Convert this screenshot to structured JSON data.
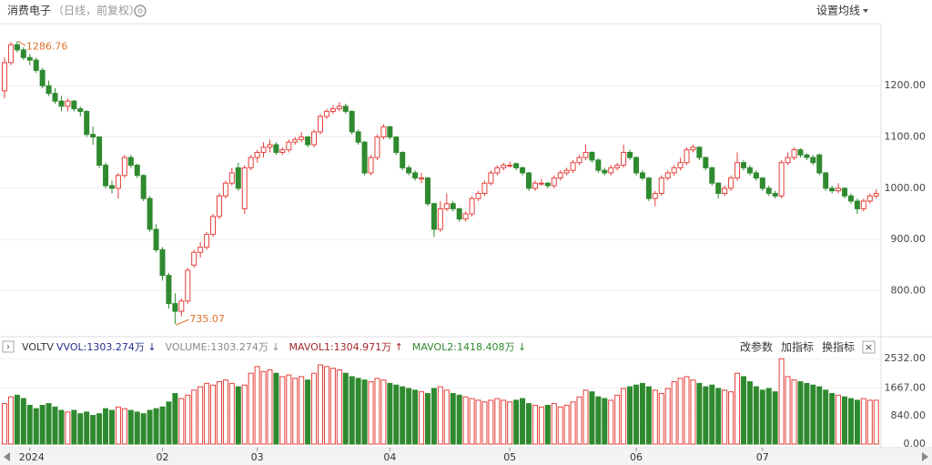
{
  "header": {
    "title": "消费电子",
    "subtitle": "（日线，前复权）",
    "ma_setting": "设置均线"
  },
  "chart_data": [
    {
      "type": "candlestick",
      "open": [
        1190,
        1245,
        1280,
        1270,
        1255,
        1250,
        1230,
        1200,
        1185,
        1170,
        1160,
        1170,
        1155,
        1150,
        1105,
        1100,
        1045,
        1005,
        1000,
        1025,
        1060,
        1045,
        1025,
        980,
        920,
        880,
        830,
        775,
        760,
        780,
        850,
        875,
        885,
        910,
        945,
        985,
        1010,
        1040,
        960,
        1040,
        1060,
        1070,
        1080,
        1085,
        1070,
        1075,
        1090,
        1095,
        1100,
        1085,
        1110,
        1140,
        1150,
        1155,
        1160,
        1150,
        1110,
        1090,
        1030,
        1060,
        1100,
        1120,
        1100,
        1070,
        1040,
        1030,
        1020,
        1020,
        970,
        920,
        960,
        970,
        960,
        940,
        950,
        980,
        990,
        1010,
        1030,
        1040,
        1045,
        1048,
        1040,
        1030,
        1000,
        1010,
        1010,
        1005,
        1020,
        1030,
        1035,
        1050,
        1060,
        1070,
        1055,
        1035,
        1030,
        1040,
        1045,
        1070,
        1060,
        1030,
        1020,
        980,
        990,
        1020,
        1030,
        1040,
        1050,
        1075,
        1080,
        1060,
        1040,
        1010,
        990,
        1000,
        1020,
        1050,
        1040,
        1030,
        1020,
        1000,
        990,
        985,
        1050,
        1060,
        1075,
        1065,
        1060,
        1065,
        1030,
        1000,
        995,
        1000,
        985,
        975,
        960,
        975,
        985
      ],
      "high": [
        1255,
        1285,
        1286.76,
        1275,
        1262,
        1255,
        1235,
        1210,
        1195,
        1180,
        1175,
        1172,
        1160,
        1152,
        1120,
        1102,
        1050,
        1015,
        1030,
        1065,
        1065,
        1048,
        1027,
        985,
        930,
        885,
        835,
        795,
        785,
        845,
        880,
        895,
        915,
        950,
        990,
        1015,
        1040,
        1050,
        1045,
        1065,
        1075,
        1090,
        1095,
        1090,
        1080,
        1095,
        1100,
        1110,
        1102,
        1115,
        1145,
        1155,
        1162,
        1168,
        1165,
        1152,
        1115,
        1092,
        1065,
        1105,
        1125,
        1122,
        1102,
        1072,
        1045,
        1035,
        1030,
        1022,
        972,
        975,
        990,
        975,
        962,
        955,
        985,
        995,
        1015,
        1035,
        1045,
        1050,
        1052,
        1050,
        1042,
        1032,
        1015,
        1018,
        1012,
        1025,
        1035,
        1040,
        1055,
        1065,
        1085,
        1072,
        1058,
        1040,
        1045,
        1050,
        1085,
        1075,
        1062,
        1035,
        1022,
        995,
        1025,
        1035,
        1045,
        1060,
        1080,
        1085,
        1082,
        1062,
        1042,
        1012,
        1005,
        1025,
        1070,
        1055,
        1045,
        1035,
        1022,
        1005,
        995,
        1055,
        1070,
        1080,
        1078,
        1068,
        1065,
        1068,
        1032,
        1005,
        1010,
        1002,
        990,
        980,
        980,
        990,
        998
      ],
      "low": [
        1175,
        1240,
        1265,
        1250,
        1240,
        1225,
        1195,
        1180,
        1165,
        1150,
        1150,
        1150,
        1140,
        1100,
        1085,
        1040,
        1000,
        990,
        980,
        1020,
        1040,
        1020,
        975,
        915,
        875,
        820,
        765,
        735.07,
        750,
        775,
        845,
        865,
        880,
        905,
        940,
        980,
        1005,
        995,
        950,
        1035,
        1050,
        1060,
        1070,
        1065,
        1065,
        1070,
        1085,
        1090,
        1080,
        1080,
        1105,
        1135,
        1145,
        1150,
        1145,
        1105,
        1085,
        1025,
        1025,
        1055,
        1095,
        1095,
        1065,
        1035,
        1025,
        1015,
        1010,
        965,
        905,
        915,
        955,
        955,
        935,
        935,
        945,
        975,
        985,
        1005,
        1025,
        1035,
        1040,
        1035,
        1025,
        995,
        995,
        1005,
        1000,
        1000,
        1015,
        1025,
        1030,
        1045,
        1055,
        1050,
        1030,
        1025,
        1025,
        1035,
        1040,
        1055,
        1025,
        1015,
        975,
        965,
        985,
        1015,
        1025,
        1035,
        1045,
        1070,
        1055,
        1035,
        1005,
        980,
        985,
        995,
        1015,
        1035,
        1025,
        1015,
        995,
        985,
        980,
        980,
        1045,
        1055,
        1060,
        1055,
        1045,
        1025,
        995,
        990,
        990,
        980,
        970,
        950,
        955,
        970,
        980
      ],
      "close": [
        1245,
        1280,
        1270,
        1255,
        1250,
        1230,
        1200,
        1185,
        1170,
        1160,
        1170,
        1155,
        1150,
        1105,
        1100,
        1045,
        1005,
        1000,
        1025,
        1060,
        1045,
        1025,
        980,
        920,
        880,
        830,
        775,
        760,
        780,
        840,
        875,
        885,
        910,
        945,
        985,
        1010,
        1030,
        1000,
        1040,
        1060,
        1070,
        1080,
        1085,
        1070,
        1075,
        1090,
        1095,
        1100,
        1085,
        1110,
        1140,
        1150,
        1155,
        1160,
        1150,
        1110,
        1090,
        1030,
        1060,
        1100,
        1120,
        1100,
        1070,
        1040,
        1030,
        1020,
        1020,
        970,
        920,
        960,
        970,
        960,
        940,
        950,
        980,
        990,
        1010,
        1030,
        1040,
        1045,
        1045,
        1040,
        1030,
        1000,
        1010,
        1010,
        1005,
        1020,
        1030,
        1035,
        1050,
        1060,
        1070,
        1055,
        1035,
        1030,
        1040,
        1045,
        1070,
        1060,
        1030,
        1020,
        980,
        990,
        1020,
        1030,
        1040,
        1050,
        1075,
        1080,
        1060,
        1040,
        1010,
        990,
        1000,
        1020,
        1050,
        1040,
        1030,
        1020,
        1000,
        990,
        985,
        1050,
        1060,
        1075,
        1065,
        1060,
        1050,
        1030,
        1000,
        995,
        1000,
        985,
        975,
        960,
        975,
        985,
        990
      ],
      "ylim": [
        714,
        1314
      ],
      "yticks": [
        {
          "value": 800,
          "label": "800.00"
        },
        {
          "value": 900,
          "label": "900.00"
        },
        {
          "value": 1000,
          "label": "1000.00"
        },
        {
          "value": 1100,
          "label": "1100.00"
        },
        {
          "value": 1200,
          "label": "1200.00"
        }
      ],
      "grid": true,
      "up_color": "#e5403b",
      "down_color": "#2f8a2f",
      "annotations": {
        "max": 1286.76,
        "min": 735.07
      },
      "annotation_color": "#e0702a"
    },
    {
      "type": "bar",
      "indicator": "VOLTV",
      "legend": [
        {
          "text": "VVOL:1303.274万 ↓",
          "color": "#23308f"
        },
        {
          "text": "VOLUME:1303.274万 ↓",
          "color": "#888888"
        },
        {
          "text": "MAVOL1:1304.971万 ↑",
          "color": "#a5262a"
        },
        {
          "text": "MAVOL2:1418.408万 ↓",
          "color": "#2f8a2f"
        }
      ],
      "buttons": [
        "改参数",
        "加指标",
        "换指标"
      ],
      "categories": [
        null,
        null,
        null,
        null,
        "2024",
        null,
        null,
        null,
        null,
        null,
        null,
        null,
        null,
        null,
        null,
        null,
        null,
        null,
        null,
        null,
        null,
        null,
        null,
        null,
        null,
        "02",
        null,
        null,
        null,
        null,
        null,
        null,
        null,
        null,
        null,
        null,
        null,
        null,
        null,
        null,
        "03",
        null,
        null,
        null,
        null,
        null,
        null,
        null,
        null,
        null,
        null,
        null,
        null,
        null,
        null,
        null,
        null,
        null,
        null,
        null,
        null,
        "04",
        null,
        null,
        null,
        null,
        null,
        null,
        null,
        null,
        null,
        null,
        null,
        null,
        null,
        null,
        null,
        null,
        null,
        null,
        "05",
        null,
        null,
        null,
        null,
        null,
        null,
        null,
        null,
        null,
        null,
        null,
        null,
        null,
        null,
        null,
        null,
        null,
        null,
        null,
        "06",
        null,
        null,
        null,
        null,
        null,
        null,
        null,
        null,
        null,
        null,
        null,
        null,
        null,
        null,
        null,
        null,
        null,
        null,
        null,
        "07",
        null,
        null,
        null,
        null,
        null,
        null,
        null,
        null,
        null,
        null,
        null,
        null,
        null,
        null,
        null,
        null,
        null,
        null
      ],
      "values": [
        1200,
        1400,
        1450,
        1350,
        1150,
        1050,
        1150,
        1200,
        1100,
        1000,
        950,
        1000,
        900,
        950,
        850,
        900,
        1050,
        1000,
        1100,
        1050,
        1000,
        950,
        900,
        1000,
        1050,
        1100,
        1250,
        1500,
        1350,
        1450,
        1600,
        1700,
        1800,
        1750,
        1850,
        1900,
        1800,
        1700,
        1750,
        2100,
        2300,
        2150,
        2200,
        2100,
        2000,
        2050,
        1950,
        2000,
        1900,
        2100,
        2350,
        2300,
        2250,
        2200,
        2100,
        2000,
        1950,
        1900,
        1850,
        1950,
        1900,
        1800,
        1750,
        1700,
        1650,
        1600,
        1550,
        1500,
        1650,
        1700,
        1600,
        1500,
        1450,
        1400,
        1350,
        1300,
        1250,
        1300,
        1350,
        1300,
        1250,
        1300,
        1350,
        1200,
        1150,
        1100,
        1150,
        1200,
        1100,
        1150,
        1250,
        1400,
        1600,
        1550,
        1400,
        1350,
        1300,
        1450,
        1650,
        1700,
        1750,
        1800,
        1700,
        1600,
        1500,
        1650,
        1850,
        1950,
        2000,
        1900,
        1800,
        1700,
        1750,
        1650,
        1600,
        1550,
        2100,
        2000,
        1850,
        1700,
        1600,
        1650,
        1550,
        2532,
        2000,
        1900,
        1850,
        1800,
        1750,
        1700,
        1600,
        1500,
        1450,
        1400,
        1350,
        1300,
        1350,
        1300,
        1300
      ],
      "ylim": [
        0,
        2700
      ],
      "yticks": [
        {
          "value": 0,
          "label": "0.00"
        },
        {
          "value": 840,
          "label": "840.00"
        },
        {
          "value": 1667,
          "label": "1667.00"
        },
        {
          "value": 2532,
          "label": "2532.00"
        }
      ],
      "grid": true
    }
  ]
}
